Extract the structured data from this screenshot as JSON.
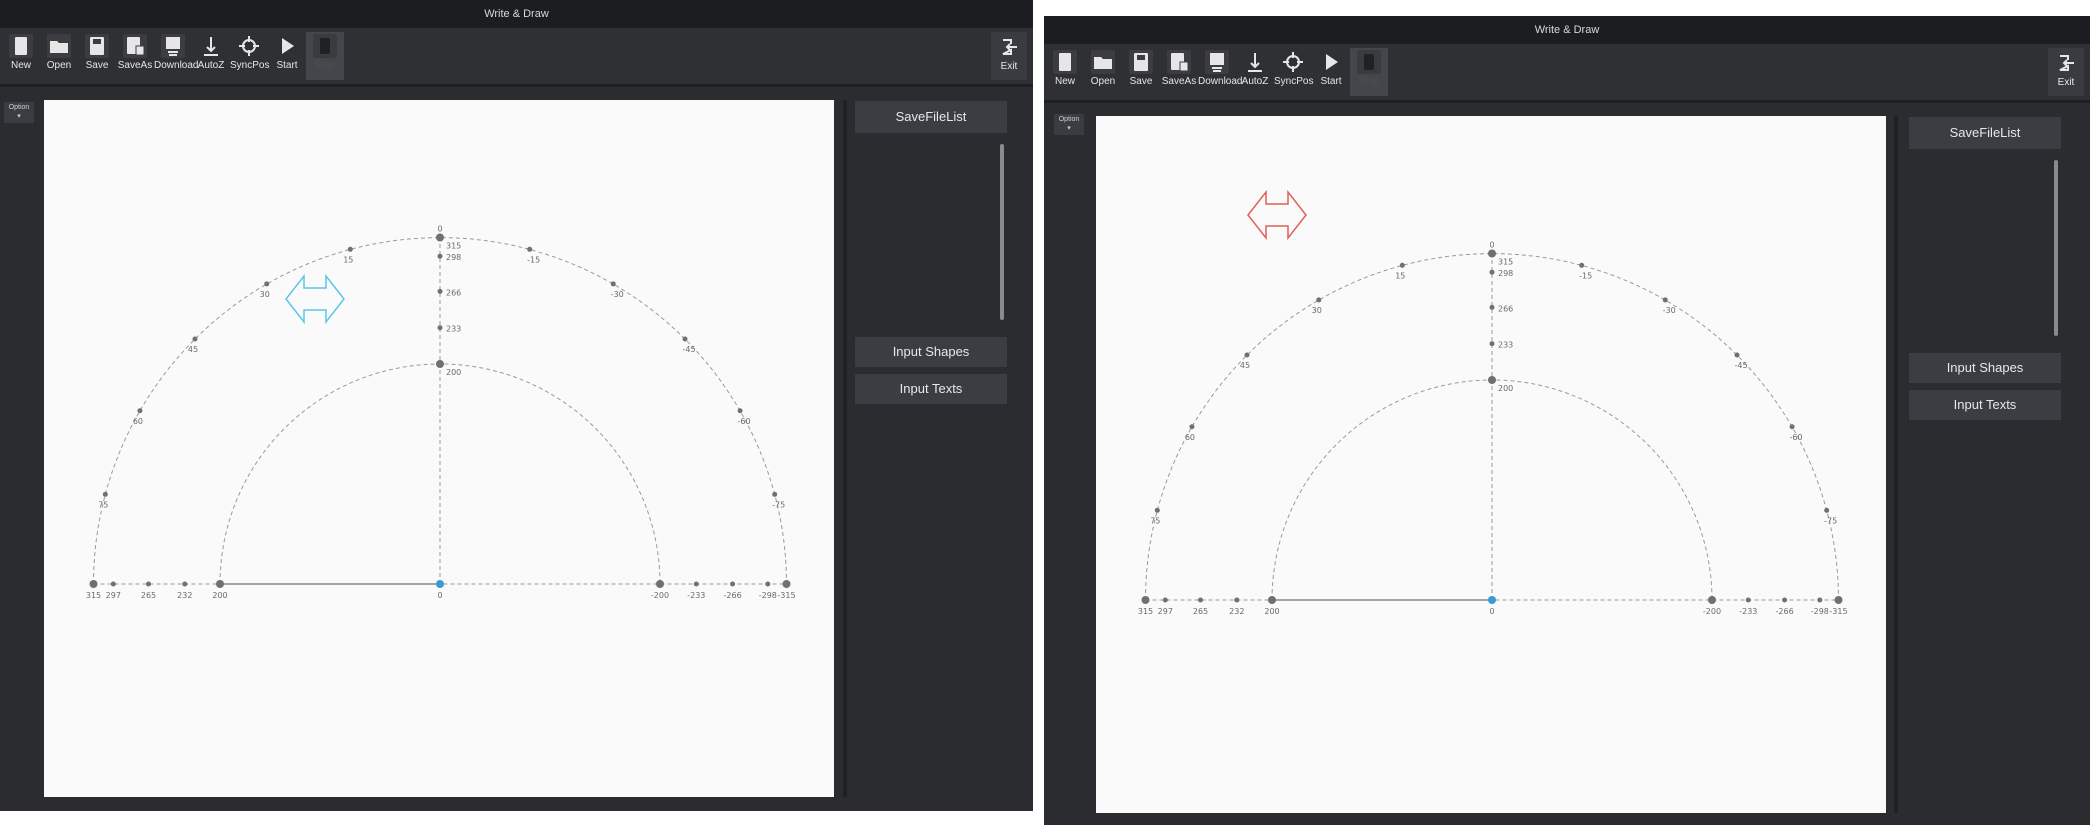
{
  "left": {
    "title": "Write & Draw",
    "toolbar": [
      {
        "label": "New",
        "icon": "new-file-icon"
      },
      {
        "label": "Open",
        "icon": "folder-icon"
      },
      {
        "label": "Save",
        "icon": "save-icon"
      },
      {
        "label": "SaveAs",
        "icon": "save-as-icon"
      },
      {
        "label": "Download",
        "icon": "download-icon"
      },
      {
        "label": "AutoZ",
        "icon": "autoz-icon"
      },
      {
        "label": "SyncPos",
        "icon": "crosshair-icon"
      },
      {
        "label": "Start",
        "icon": "play-icon"
      },
      {
        "label": "Stop",
        "icon": "stop-icon",
        "disabled": true
      }
    ],
    "exit_label": "Exit",
    "option_label": "Option",
    "panel": {
      "savefilelist": "SaveFileList",
      "input_shapes": "Input Shapes",
      "input_texts": "Input Texts"
    },
    "arrow_color": "#5bc6e8"
  },
  "right": {
    "title": "Write & Draw",
    "toolbar": [
      {
        "label": "New",
        "icon": "new-file-icon"
      },
      {
        "label": "Open",
        "icon": "folder-icon"
      },
      {
        "label": "Save",
        "icon": "save-icon"
      },
      {
        "label": "SaveAs",
        "icon": "save-as-icon"
      },
      {
        "label": "Download",
        "icon": "download-icon"
      },
      {
        "label": "AutoZ",
        "icon": "autoz-icon"
      },
      {
        "label": "SyncPos",
        "icon": "crosshair-icon"
      },
      {
        "label": "Start",
        "icon": "play-icon"
      },
      {
        "label": "Stop",
        "icon": "stop-icon",
        "disabled": true
      }
    ],
    "exit_label": "Exit",
    "option_label": "Option",
    "panel": {
      "savefilelist": "SaveFileList",
      "input_shapes": "Input Shapes",
      "input_texts": "Input Texts"
    },
    "arrow_color": "#e0605a"
  },
  "diagram": {
    "outer_radius": 315,
    "inner_radius": 200,
    "top_label": "0",
    "angle_labels": [
      {
        "a": 15,
        "t": "15"
      },
      {
        "a": 30,
        "t": "30"
      },
      {
        "a": 45,
        "t": "45"
      },
      {
        "a": 60,
        "t": "60"
      },
      {
        "a": 75,
        "t": "75"
      },
      {
        "a": -15,
        "t": "-15"
      },
      {
        "a": -30,
        "t": "-30"
      },
      {
        "a": -45,
        "t": "-45"
      },
      {
        "a": -60,
        "t": "-60"
      },
      {
        "a": -75,
        "t": "-75"
      }
    ],
    "vertical_ticks": [
      {
        "r": 315,
        "t": "315"
      },
      {
        "r": 298,
        "t": "298"
      },
      {
        "r": 266,
        "t": "266"
      },
      {
        "r": 233,
        "t": "233"
      },
      {
        "r": 200,
        "t": "200"
      }
    ],
    "baseline_left": [
      {
        "r": 315,
        "t": "315"
      },
      {
        "r": 297,
        "t": "297"
      },
      {
        "r": 265,
        "t": "265"
      },
      {
        "r": 232,
        "t": "232"
      },
      {
        "r": 200,
        "t": "200"
      }
    ],
    "center_label": "0",
    "baseline_right": [
      {
        "r": 200,
        "t": "-200"
      },
      {
        "r": 233,
        "t": "-233"
      },
      {
        "r": 266,
        "t": "-266"
      },
      {
        "r": 298,
        "t": "-298"
      },
      {
        "r": 315,
        "t": "-315"
      }
    ]
  }
}
